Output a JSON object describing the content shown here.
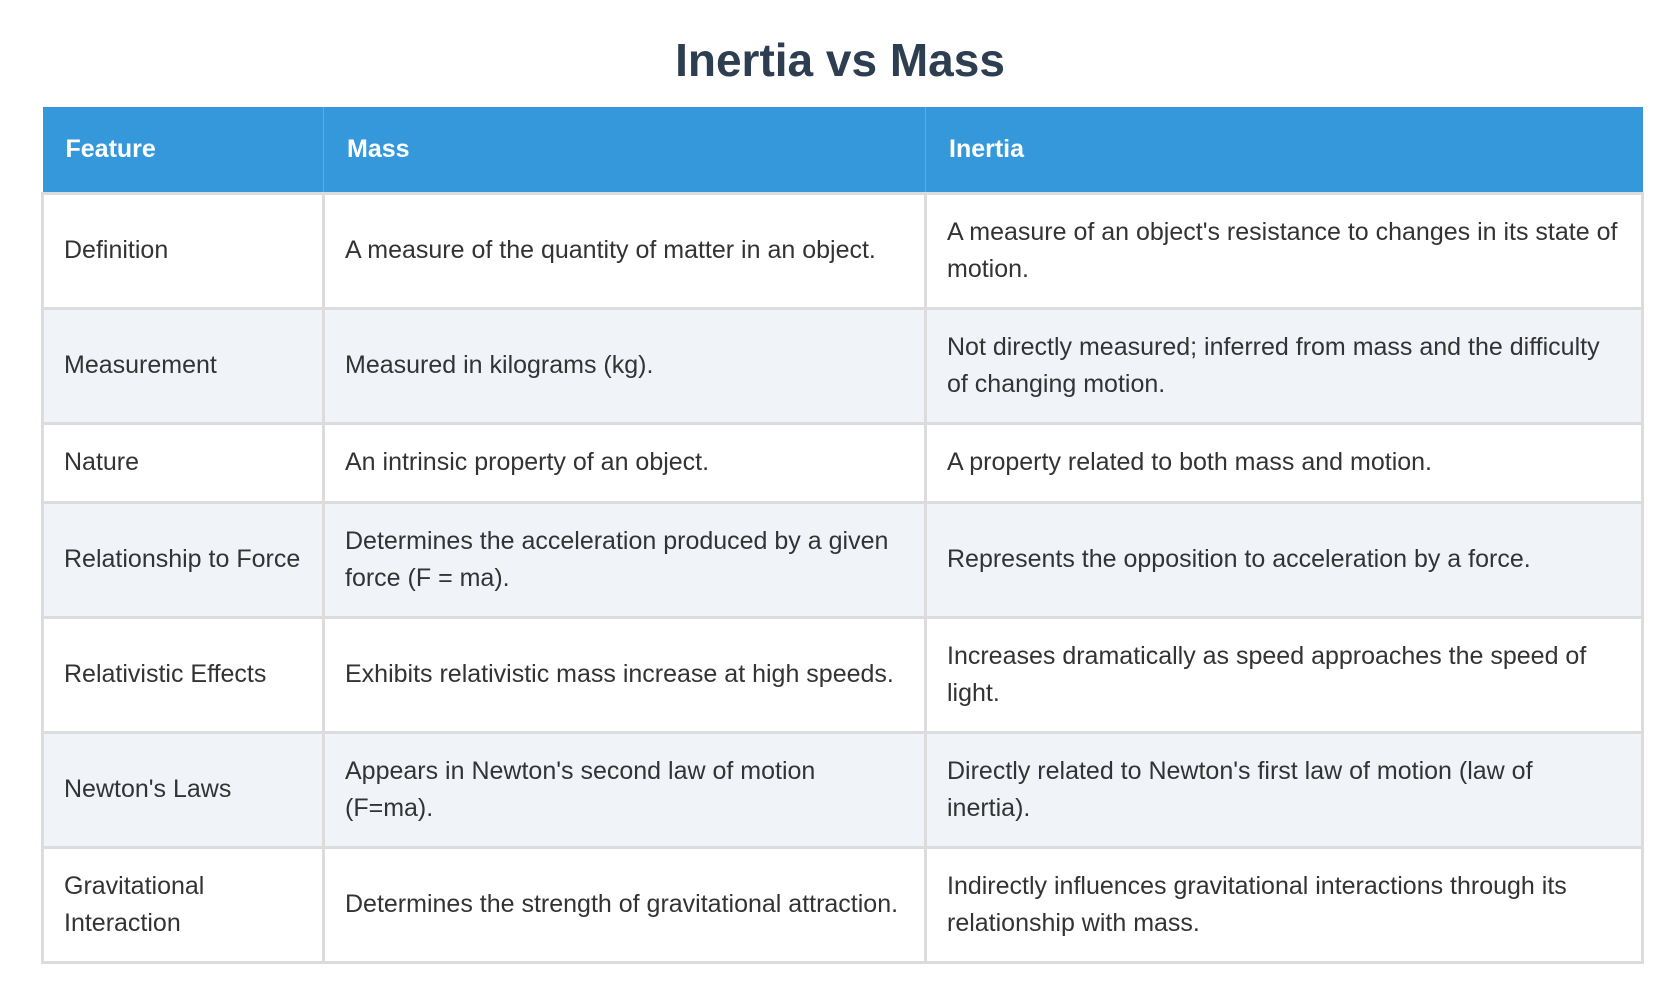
{
  "title": "Inertia vs Mass",
  "table": {
    "headers": [
      "Feature",
      "Mass",
      "Inertia"
    ],
    "rows": [
      [
        "Definition",
        "A measure of the quantity of matter in an object.",
        "A measure of an object's resistance to changes in its state of motion."
      ],
      [
        "Measurement",
        "Measured in kilograms (kg).",
        "Not directly measured; inferred from mass and the difficulty of changing motion."
      ],
      [
        "Nature",
        "An intrinsic property of an object.",
        "A property related to both mass and motion."
      ],
      [
        "Relationship to Force",
        "Determines the acceleration produced by a given force (F = ma).",
        "Represents the opposition to acceleration by a force."
      ],
      [
        "Relativistic Effects",
        "Exhibits relativistic mass increase at high speeds.",
        "Increases dramatically as speed approaches the speed of light."
      ],
      [
        "Newton's Laws",
        "Appears in Newton's second law of motion (F=ma).",
        "Directly related to Newton's first law of motion (law of inertia)."
      ],
      [
        "Gravitational Interaction",
        "Determines the strength of gravitational attraction.",
        "Indirectly influences gravitational interactions through its relationship with mass."
      ]
    ]
  },
  "colors": {
    "header_bg": "#3498db",
    "title": "#2c3e50",
    "stripe": "#f0f4f9"
  }
}
